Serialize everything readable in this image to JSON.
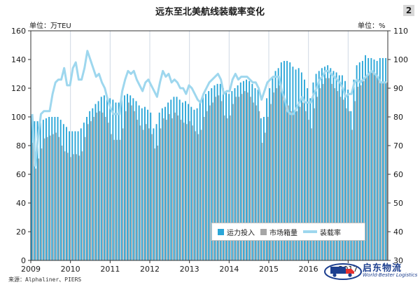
{
  "title": "远东至北美航线装载率变化",
  "badge": "2",
  "unit_left": "单位：万TEU",
  "unit_right": "单位：%",
  "source": "来源：Alphaliner、PIERS",
  "logo": {
    "cn": "启东物流",
    "en": "World-Bester Logistics",
    "icon": "truck-logo-icon"
  },
  "colors": {
    "capacity": "#2aa6d8",
    "volume": "#a6a6a6",
    "load_factor": "#9ed7ee"
  },
  "chart_data": {
    "type": "bar",
    "x_tick_labels": [
      "2009",
      "2010",
      "2011",
      "2012",
      "2013",
      "2014",
      "2015",
      "2016",
      "2017"
    ],
    "ylim": [
      0,
      160
    ],
    "y_ticks": [
      0,
      20,
      40,
      60,
      80,
      100,
      120,
      140,
      160
    ],
    "y2lim": [
      30,
      110
    ],
    "y2_ticks": [
      30,
      40,
      50,
      60,
      70,
      80,
      90,
      100,
      110
    ],
    "grid": "vertical",
    "legend": "bottom-right",
    "series": [
      {
        "name": "运力投入",
        "kind": "bar",
        "axis": "left",
        "values": [
          101,
          97,
          97,
          96,
          98,
          99,
          100,
          100,
          100,
          100,
          98,
          95,
          93,
          90,
          90,
          90,
          90,
          92,
          96,
          100,
          104,
          106,
          109,
          111,
          114,
          115,
          114,
          113,
          112,
          110,
          110,
          112,
          115,
          116,
          115,
          113,
          111,
          108,
          106,
          107,
          105,
          103,
          92,
          95,
          103,
          106,
          107,
          110,
          112,
          114,
          114,
          112,
          110,
          111,
          109,
          107,
          105,
          106,
          110,
          114,
          116,
          118,
          120,
          122,
          123,
          123,
          120,
          117,
          116,
          118,
          120,
          122,
          124,
          125,
          126,
          125,
          123,
          120,
          119,
          99,
          100,
          113,
          120,
          128,
          132,
          134,
          138,
          139,
          139,
          138,
          135,
          133,
          134,
          131,
          126,
          120,
          113,
          124,
          130,
          132,
          134,
          135,
          136,
          134,
          132,
          131,
          129,
          129,
          125,
          119,
          104,
          126,
          136,
          138,
          139,
          143,
          141,
          141,
          140,
          139,
          141,
          141,
          141
        ]
      },
      {
        "name": "市场箱量",
        "kind": "bar",
        "axis": "left",
        "values": [
          82,
          64,
          71,
          78,
          85,
          86,
          87,
          88,
          89,
          86,
          80,
          76,
          75,
          72,
          74,
          74,
          73,
          76,
          86,
          95,
          97,
          100,
          103,
          104,
          103,
          100,
          96,
          88,
          84,
          84,
          84,
          92,
          104,
          110,
          108,
          104,
          98,
          94,
          91,
          95,
          92,
          88,
          78,
          80,
          92,
          99,
          98,
          102,
          99,
          103,
          101,
          98,
          96,
          95,
          97,
          94,
          90,
          88,
          91,
          100,
          104,
          108,
          110,
          114,
          115,
          111,
          101,
          99,
          101,
          109,
          114,
          114,
          116,
          118,
          117,
          114,
          110,
          108,
          104,
          82,
          89,
          100,
          109,
          117,
          120,
          122,
          118,
          112,
          108,
          104,
          102,
          104,
          107,
          110,
          104,
          98,
          92,
          106,
          114,
          120,
          123,
          127,
          127,
          123,
          120,
          118,
          114,
          112,
          106,
          104,
          91,
          111,
          121,
          122,
          125,
          128,
          130,
          131,
          129,
          126,
          124,
          124,
          124
        ]
      },
      {
        "name": "装载率",
        "kind": "line",
        "axis": "right",
        "values": [
          81,
          63,
          73,
          81,
          82,
          82,
          82,
          88,
          92,
          93,
          93,
          97,
          91,
          91,
          97,
          99,
          93,
          93,
          97,
          103,
          100,
          97,
          94,
          95,
          92,
          90,
          86,
          83,
          81,
          81,
          81,
          89,
          93,
          96,
          95,
          96,
          93,
          91,
          89,
          92,
          93,
          91,
          89,
          87,
          92,
          96,
          94,
          95,
          92,
          93,
          92,
          90,
          90,
          88,
          91,
          90,
          88,
          86,
          85,
          88,
          90,
          92,
          93,
          94,
          95,
          93,
          88,
          89,
          89,
          93,
          95,
          93,
          94,
          94,
          94,
          93,
          92,
          92,
          90,
          86,
          89,
          92,
          93,
          94,
          94,
          94,
          89,
          86,
          82,
          81,
          81,
          83,
          85,
          87,
          85,
          85,
          85,
          88,
          90,
          93,
          94,
          96,
          96,
          95,
          94,
          93,
          92,
          90,
          87,
          88,
          88,
          92,
          93,
          92,
          93,
          94,
          95,
          96,
          95,
          94,
          92,
          92,
          92
        ]
      }
    ]
  }
}
